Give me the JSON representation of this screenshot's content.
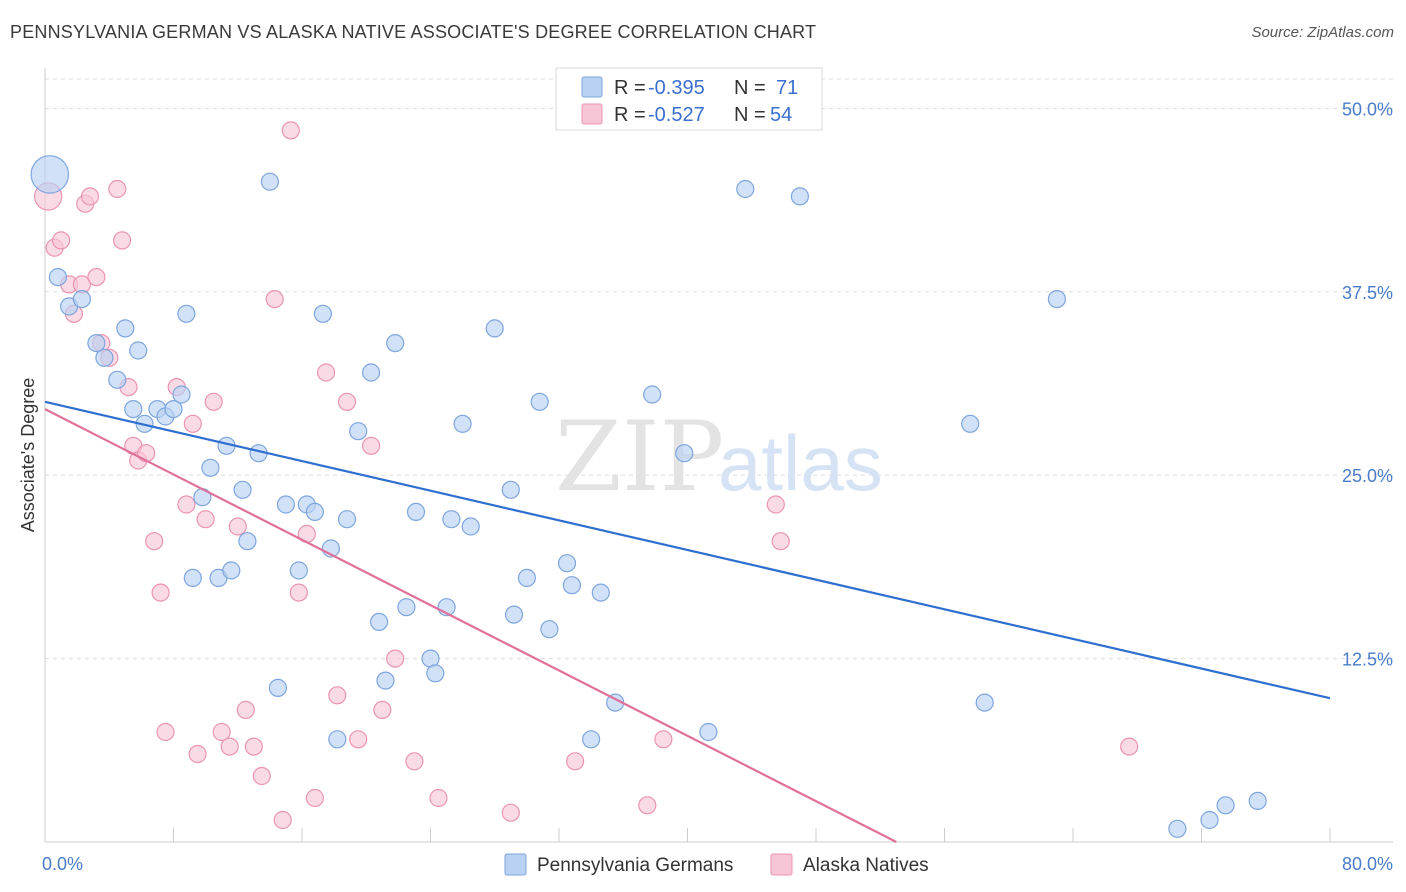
{
  "title": "PENNSYLVANIA GERMAN VS ALASKA NATIVE ASSOCIATE'S DEGREE CORRELATION CHART",
  "source": "Source: ZipAtlas.com",
  "watermark": {
    "zip": "ZIP",
    "atlas": "atlas"
  },
  "colors": {
    "blue_fill": "#b9d1f2",
    "blue_stroke": "#7ea6de",
    "blue_line": "#2e6fd0",
    "pink_fill": "#f7c6d6",
    "pink_stroke": "#eb94b3",
    "pink_line": "#e0709a",
    "grid": "#dddddd",
    "tick_text": "#4a7cc9"
  },
  "legend": {
    "rows": [
      {
        "r_label": "R = ",
        "r_value": "-0.395",
        "n_label": "N = ",
        "n_value": "71"
      },
      {
        "r_label": "R = ",
        "r_value": "-0.527",
        "n_label": "N = ",
        "n_value": "54"
      }
    ]
  },
  "bottom_legend": [
    "Pennsylvania Germans",
    "Alaska Natives"
  ],
  "chart_data": {
    "type": "scatter",
    "title": "PENNSYLVANIA GERMAN VS ALASKA NATIVE ASSOCIATE'S DEGREE CORRELATION CHART",
    "xlabel": "",
    "ylabel": "Associate's Degree",
    "xlim": [
      0,
      80
    ],
    "ylim": [
      0,
      52
    ],
    "x_tick_labels": [
      "0.0%",
      "80.0%"
    ],
    "y_ticks": [
      12.5,
      25.0,
      37.5,
      50.0
    ],
    "y_tick_labels": [
      "12.5%",
      "25.0%",
      "37.5%",
      "50.0%"
    ],
    "series": [
      {
        "name": "Pennsylvania Germans",
        "r": -0.395,
        "n": 71,
        "trend": {
          "x": [
            0,
            80
          ],
          "y": [
            30.0,
            9.8
          ]
        },
        "points": [
          [
            0.3,
            45.5,
            2.2
          ],
          [
            0.8,
            38.5,
            1
          ],
          [
            1.5,
            36.5,
            1
          ],
          [
            2.3,
            37,
            1
          ],
          [
            3.2,
            34,
            1
          ],
          [
            3.7,
            33,
            1
          ],
          [
            4.5,
            31.5,
            1
          ],
          [
            5,
            35,
            1
          ],
          [
            5.5,
            29.5,
            1
          ],
          [
            5.8,
            33.5,
            1
          ],
          [
            6.2,
            28.5,
            1
          ],
          [
            7,
            29.5,
            1
          ],
          [
            7.5,
            29,
            1
          ],
          [
            8,
            29.5,
            1
          ],
          [
            8.5,
            30.5,
            1
          ],
          [
            8.8,
            36,
            1
          ],
          [
            9.2,
            18,
            1
          ],
          [
            9.8,
            23.5,
            1
          ],
          [
            10.3,
            25.5,
            1
          ],
          [
            10.8,
            18,
            1
          ],
          [
            11.3,
            27,
            1
          ],
          [
            11.6,
            18.5,
            1
          ],
          [
            12.3,
            24,
            1
          ],
          [
            12.6,
            20.5,
            1
          ],
          [
            13.3,
            26.5,
            1
          ],
          [
            14,
            45,
            1
          ],
          [
            14.5,
            10.5,
            1
          ],
          [
            15,
            23,
            1
          ],
          [
            15.8,
            18.5,
            1
          ],
          [
            16.3,
            23,
            1
          ],
          [
            16.8,
            22.5,
            1
          ],
          [
            17.3,
            36,
            1
          ],
          [
            17.8,
            20,
            1
          ],
          [
            18.2,
            7,
            1
          ],
          [
            18.8,
            22,
            1
          ],
          [
            19.5,
            28,
            1
          ],
          [
            20.3,
            32,
            1
          ],
          [
            20.8,
            15,
            1
          ],
          [
            21.2,
            11,
            1
          ],
          [
            21.8,
            34,
            1
          ],
          [
            22.5,
            16,
            1
          ],
          [
            23.1,
            22.5,
            1
          ],
          [
            24,
            12.5,
            1
          ],
          [
            24.3,
            11.5,
            1
          ],
          [
            25,
            16,
            1
          ],
          [
            25.3,
            22,
            1
          ],
          [
            26,
            28.5,
            1
          ],
          [
            26.5,
            21.5,
            1
          ],
          [
            28,
            35,
            1
          ],
          [
            29,
            24,
            1
          ],
          [
            29.2,
            15.5,
            1
          ],
          [
            30,
            18,
            1
          ],
          [
            30.8,
            30,
            1
          ],
          [
            31.4,
            14.5,
            1
          ],
          [
            32.5,
            19,
            1
          ],
          [
            32.8,
            17.5,
            1
          ],
          [
            34,
            7,
            1
          ],
          [
            34.6,
            17,
            1
          ],
          [
            35.5,
            9.5,
            1
          ],
          [
            37.8,
            30.5,
            1
          ],
          [
            39.8,
            26.5,
            1
          ],
          [
            41.3,
            7.5,
            1
          ],
          [
            43.6,
            44.5,
            1
          ],
          [
            47,
            44,
            1
          ],
          [
            57.6,
            28.5,
            1
          ],
          [
            58.5,
            9.5,
            1
          ],
          [
            63,
            37,
            1
          ],
          [
            72.5,
            1.5,
            1
          ],
          [
            73.5,
            2.5,
            1
          ],
          [
            75.5,
            2.8,
            1
          ],
          [
            70.5,
            0.9,
            1
          ]
        ]
      },
      {
        "name": "Alaska Natives",
        "r": -0.527,
        "n": 54,
        "trend": {
          "x": [
            0,
            53
          ],
          "y": [
            29.5,
            0
          ]
        },
        "points": [
          [
            0.2,
            44,
            1.6
          ],
          [
            0.6,
            40.5,
            1
          ],
          [
            1,
            41,
            1
          ],
          [
            1.5,
            38,
            1
          ],
          [
            1.8,
            36,
            1
          ],
          [
            2.3,
            38,
            1
          ],
          [
            2.5,
            43.5,
            1
          ],
          [
            2.8,
            44,
            1
          ],
          [
            3.2,
            38.5,
            1
          ],
          [
            3.5,
            34,
            1
          ],
          [
            4,
            33,
            1
          ],
          [
            4.5,
            44.5,
            1
          ],
          [
            4.8,
            41,
            1
          ],
          [
            5.2,
            31,
            1
          ],
          [
            5.5,
            27,
            1
          ],
          [
            5.8,
            26,
            1
          ],
          [
            6.3,
            26.5,
            1
          ],
          [
            6.8,
            20.5,
            1
          ],
          [
            7.2,
            17,
            1
          ],
          [
            7.5,
            7.5,
            1
          ],
          [
            8.2,
            31,
            1
          ],
          [
            8.8,
            23,
            1
          ],
          [
            9.2,
            28.5,
            1
          ],
          [
            9.5,
            6,
            1
          ],
          [
            10,
            22,
            1
          ],
          [
            10.5,
            30,
            1
          ],
          [
            11,
            7.5,
            1
          ],
          [
            11.5,
            6.5,
            1
          ],
          [
            12,
            21.5,
            1
          ],
          [
            12.5,
            9,
            1
          ],
          [
            13,
            6.5,
            1
          ],
          [
            13.5,
            4.5,
            1
          ],
          [
            14.3,
            37,
            1
          ],
          [
            14.8,
            1.5,
            1
          ],
          [
            15.3,
            48.5,
            1
          ],
          [
            15.8,
            17,
            1
          ],
          [
            16.3,
            21,
            1
          ],
          [
            16.8,
            3,
            1
          ],
          [
            17.5,
            32,
            1
          ],
          [
            18.2,
            10,
            1
          ],
          [
            18.8,
            30,
            1
          ],
          [
            19.5,
            7,
            1
          ],
          [
            20.3,
            27,
            1
          ],
          [
            21,
            9,
            1
          ],
          [
            21.8,
            12.5,
            1
          ],
          [
            23,
            5.5,
            1
          ],
          [
            24.5,
            3,
            1
          ],
          [
            29,
            2,
            1
          ],
          [
            33,
            5.5,
            1
          ],
          [
            37.5,
            2.5,
            1
          ],
          [
            38.5,
            7,
            1
          ],
          [
            45.5,
            23,
            1
          ],
          [
            45.8,
            20.5,
            1
          ],
          [
            67.5,
            6.5,
            1
          ]
        ]
      }
    ]
  }
}
